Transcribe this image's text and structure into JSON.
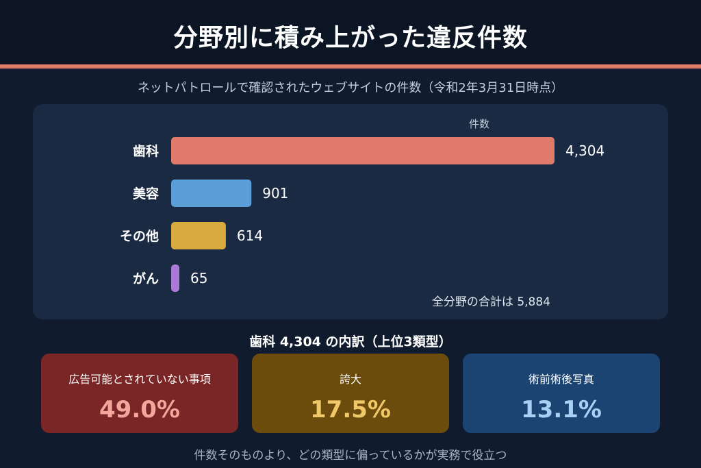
{
  "header": {
    "title": "分野別に積み上がった違反件数",
    "subtitle": "ネットパトロールで確認されたウェブサイトの件数（令和2年3月31日時点）"
  },
  "chart_data": {
    "type": "bar",
    "orientation": "horizontal",
    "title": "",
    "xlabel": "件数",
    "ylabel": "",
    "categories": [
      "歯科",
      "美容",
      "その他",
      "がん"
    ],
    "values": [
      4304,
      901,
      614,
      65
    ],
    "value_labels": [
      "4,304",
      "901",
      "614",
      "65"
    ],
    "colors": [
      "#e07a6a",
      "#5a9fd8",
      "#d9aa3e",
      "#a97bd6"
    ],
    "xlim": [
      0,
      4304
    ],
    "grid": false,
    "legend": "none",
    "total_label": "全分野の合計は 5,884"
  },
  "breakdown": {
    "title": "歯科 4,304 の内訳（上位3類型）",
    "cards": [
      {
        "label": "広告可能とされていない事項",
        "value": "49.0%",
        "share": 49.0
      },
      {
        "label": "誇大",
        "value": "17.5%",
        "share": 17.5
      },
      {
        "label": "術前術後写真",
        "value": "13.1%",
        "share": 13.1
      }
    ]
  },
  "footer": {
    "note": "件数そのものより、どの類型に偏っているかが実務で役立つ"
  }
}
